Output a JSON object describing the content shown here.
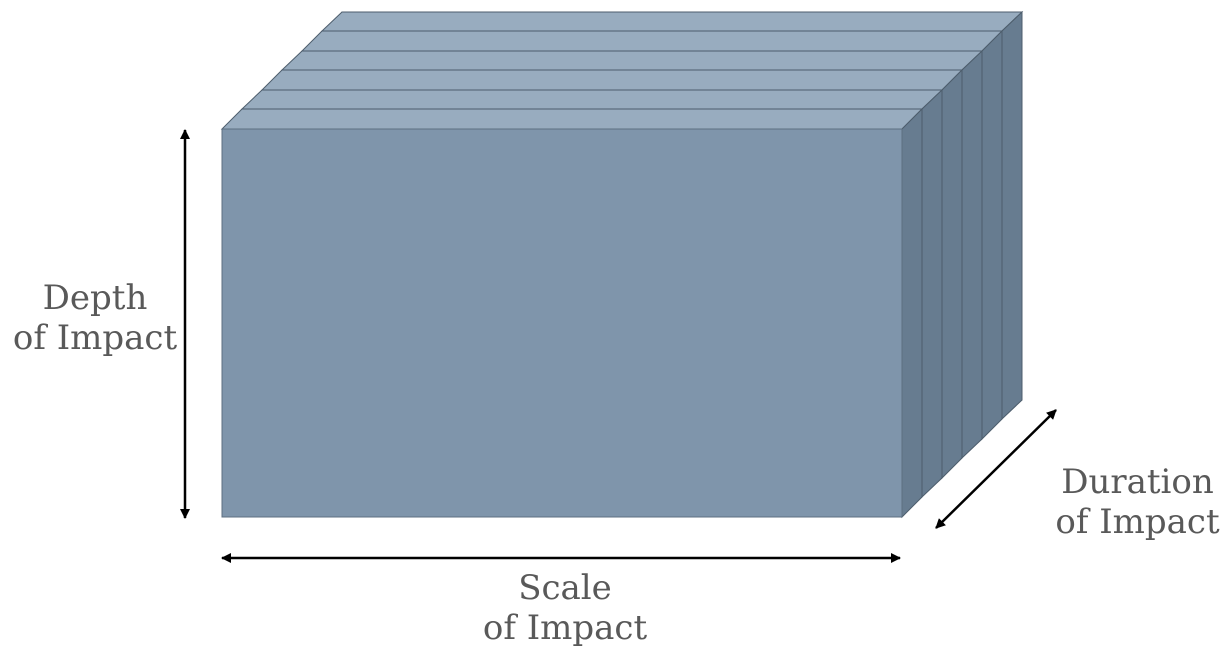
{
  "labels": {
    "depth": {
      "line1": "Depth",
      "line2": "of Impact"
    },
    "scale": {
      "line1": "Scale",
      "line2": "of Impact"
    },
    "duration": {
      "line1": "Duration",
      "line2": "of Impact"
    }
  },
  "colors": {
    "front": "#7f95ab",
    "top": "#98acbf",
    "side": "#677c90",
    "edge": "#4d5d6c",
    "arrow": "#000000",
    "text": "#595959"
  }
}
